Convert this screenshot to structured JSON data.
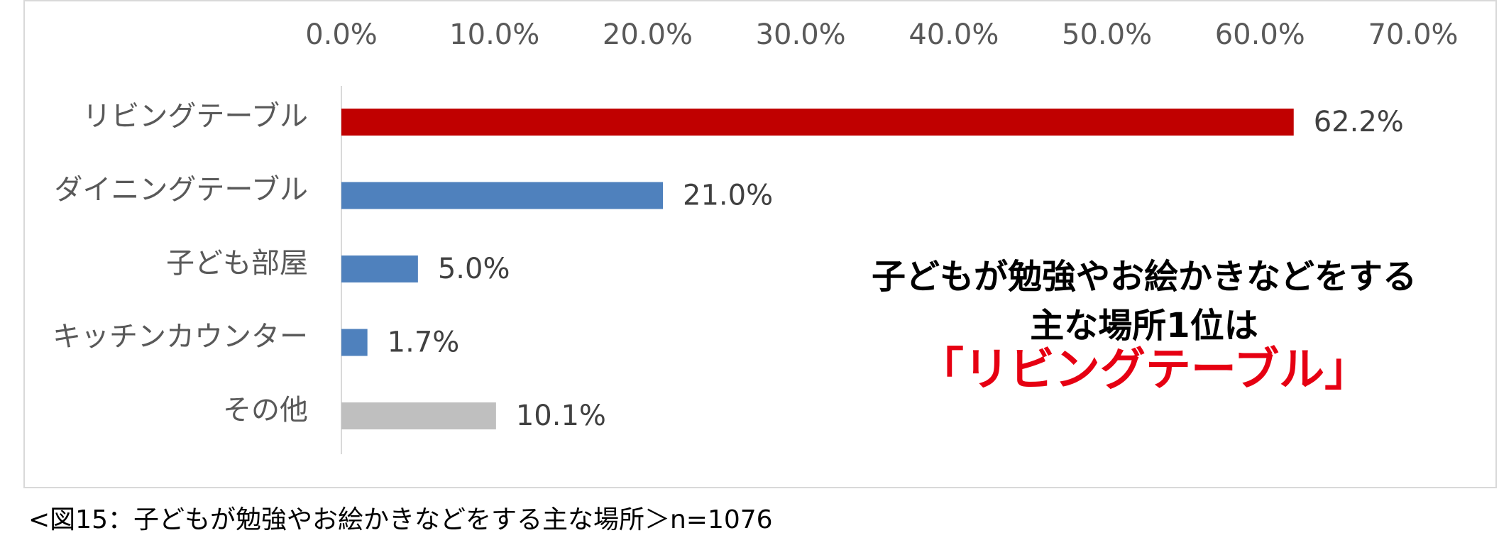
{
  "chart_data": {
    "type": "hbar",
    "categories": [
      "リビングテーブル",
      "ダイニングテーブル",
      "子ども部屋",
      "キッチンカウンター",
      "その他"
    ],
    "values": [
      62.2,
      21.0,
      5.0,
      1.7,
      10.1
    ],
    "value_labels": [
      "62.2%",
      "21.0%",
      "5.0%",
      "1.7%",
      "10.1%"
    ],
    "colors": [
      "#c00000",
      "#4f81bd",
      "#4f81bd",
      "#4f81bd",
      "#bfbfbf"
    ],
    "xlim": [
      0,
      70
    ],
    "xticks": [
      {
        "value": 0,
        "label": "0.0%"
      },
      {
        "value": 10,
        "label": "10.0%"
      },
      {
        "value": 20,
        "label": "20.0%"
      },
      {
        "value": 30,
        "label": "30.0%"
      },
      {
        "value": 40,
        "label": "40.0%"
      },
      {
        "value": 50,
        "label": "50.0%"
      },
      {
        "value": 60,
        "label": "60.0%"
      },
      {
        "value": 70,
        "label": "70.0%"
      }
    ],
    "grid": false,
    "annotation": [
      "子どもが勉強やお絵かきなどをする",
      "主な場所1位は",
      "「リビングテーブル」"
    ],
    "caption": "<図15：子どもが勉強やお絵かきなどをする主な場所＞n=1076"
  }
}
